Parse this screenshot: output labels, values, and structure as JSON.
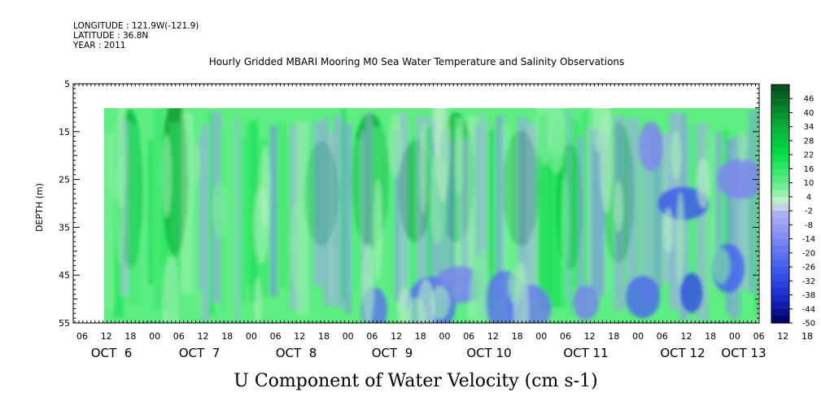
{
  "header": {
    "longitude": "LONGITUDE : 121.9W(-121.9)",
    "latitude": "LATITUDE : 36.8N",
    "year": "YEAR : 2011",
    "title": "Hourly Gridded MBARI Mooring M0 Sea Water Temperature and Salinity Observations"
  },
  "chart_data": {
    "type": "heatmap",
    "title": "Hourly Gridded MBARI Mooring M0 Sea Water Temperature and Salinity Observations",
    "variable_label": "U Component of Water Velocity (cm s-1)",
    "ylabel": "DEPTH (m)",
    "ylim": [
      5,
      55
    ],
    "y_inverted": true,
    "y_ticks": [
      "5",
      "15",
      "25",
      "35",
      "45",
      "55"
    ],
    "x_hour_ticks": [
      "06",
      "12",
      "18",
      "00",
      "06",
      "12",
      "18",
      "00",
      "06",
      "12",
      "18",
      "00",
      "06",
      "12",
      "18",
      "00",
      "06",
      "12",
      "18",
      "00",
      "06",
      "12",
      "18",
      "00",
      "06",
      "12",
      "18",
      "00",
      "06",
      "12",
      "18",
      "00",
      "06"
    ],
    "x_date_labels": [
      "OCT  6",
      "OCT  7",
      "OCT  8",
      "OCT  9",
      "OCT 10",
      "OCT 11",
      "OCT 12",
      "OCT 13"
    ],
    "data_depth_range": [
      10,
      55
    ],
    "colorbar_labels": [
      "46",
      "40",
      "34",
      "28",
      "22",
      "16",
      "10",
      "4",
      "-2",
      "-8",
      "-14",
      "-20",
      "-26",
      "-32",
      "-38",
      "-44",
      "-50"
    ],
    "colorbar_range": [
      -50,
      52
    ],
    "grid": false,
    "legend": "right colorbar",
    "colors": {
      "strong_positive": "#0a4a1c",
      "positive": "#00e04a",
      "weak_positive": "#a8f0b8",
      "weak_negative": "#b0b0f0",
      "negative": "#5f6ff0",
      "strong_negative": "#0a0a70"
    }
  }
}
